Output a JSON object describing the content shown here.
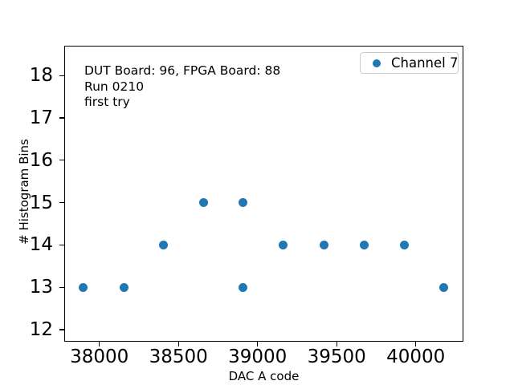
{
  "chart_data": {
    "type": "scatter",
    "title": "",
    "xlabel": "DAC A code",
    "ylabel": "# Histogram Bins",
    "xticks": [
      38000,
      38500,
      39000,
      39500,
      40000
    ],
    "yticks": [
      12,
      13,
      14,
      15,
      16,
      17,
      18
    ],
    "xlim": [
      37778,
      40300
    ],
    "ylim": [
      11.72,
      18.7
    ],
    "grid": false,
    "legend_position": "upper right",
    "marker_color": "#1f77b4",
    "legend_border_color": "#cccccc",
    "spine_color": "#000000",
    "series": [
      {
        "name": "Channel 7",
        "points": [
          {
            "x": 37896,
            "y": 13
          },
          {
            "x": 38154,
            "y": 13
          },
          {
            "x": 38404,
            "y": 14
          },
          {
            "x": 38658,
            "y": 15
          },
          {
            "x": 38909,
            "y": 15
          },
          {
            "x": 38909,
            "y": 13
          },
          {
            "x": 39162,
            "y": 14
          },
          {
            "x": 39419,
            "y": 14
          },
          {
            "x": 39675,
            "y": 14
          },
          {
            "x": 39927,
            "y": 14
          },
          {
            "x": 40178,
            "y": 13
          }
        ]
      }
    ],
    "annotation": {
      "lines": [
        "DUT Board: 96, FPGA Board: 88",
        "Run 0210",
        "first try"
      ]
    }
  }
}
